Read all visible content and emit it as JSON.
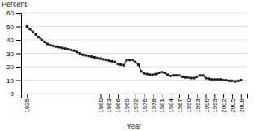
{
  "chart_data": {
    "type": "line",
    "xlabel": "Year",
    "ylabel": "Percent",
    "x": [
      1935,
      1936,
      1937,
      1938,
      1939,
      1940,
      1941,
      1942,
      1943,
      1944,
      1945,
      1946,
      1947,
      1948,
      1949,
      1950,
      1951,
      1952,
      1953,
      1954,
      1955,
      1956,
      1957,
      1958,
      1959,
      1960,
      1961,
      1962,
      1963,
      1964,
      1965,
      1966,
      1967,
      1968,
      1969,
      1970,
      1971,
      1972,
      1973,
      1974,
      1975,
      1976,
      1977,
      1978,
      1979,
      1980,
      1981,
      1982,
      1983,
      1984,
      1985,
      1986,
      1987,
      1988,
      1989,
      1990,
      1991,
      1992,
      1993,
      1994,
      1995,
      1996,
      1997,
      1998,
      1999,
      2000,
      2001,
      2002,
      2003,
      2004,
      2005,
      2006,
      2007,
      2008
    ],
    "values": [
      50.0,
      48.0,
      46.0,
      44.0,
      42.0,
      40.0,
      38.5,
      37.0,
      36.0,
      35.5,
      35.0,
      34.5,
      34.0,
      33.5,
      33.0,
      32.5,
      32.0,
      31.0,
      30.0,
      29.0,
      28.5,
      28.0,
      27.5,
      27.0,
      26.5,
      26.0,
      25.5,
      25.0,
      24.5,
      24.0,
      23.5,
      22.0,
      21.5,
      21.0,
      25.0,
      25.0,
      25.0,
      23.5,
      21.5,
      16.5,
      15.0,
      14.5,
      14.0,
      14.0,
      14.5,
      15.5,
      16.0,
      15.5,
      14.0,
      13.0,
      13.5,
      13.5,
      13.5,
      12.5,
      12.0,
      12.0,
      11.5,
      11.5,
      12.5,
      13.5,
      13.5,
      11.5,
      11.0,
      10.5,
      10.5,
      10.5,
      10.5,
      10.0,
      10.0,
      9.5,
      9.5,
      9.0,
      9.5,
      10.0
    ],
    "color": "#1a1a1a",
    "marker": "square",
    "xlim": [
      1933,
      2010
    ],
    "xticks": [
      1935,
      1960,
      1963,
      1966,
      1969,
      1972,
      1975,
      1978,
      1981,
      1984,
      1987,
      1990,
      1993,
      1996,
      1999,
      2002,
      2005,
      2008
    ],
    "ylim": [
      0,
      60
    ],
    "yticks": [
      0,
      10,
      20,
      30,
      40,
      50,
      60
    ],
    "grid": true
  }
}
